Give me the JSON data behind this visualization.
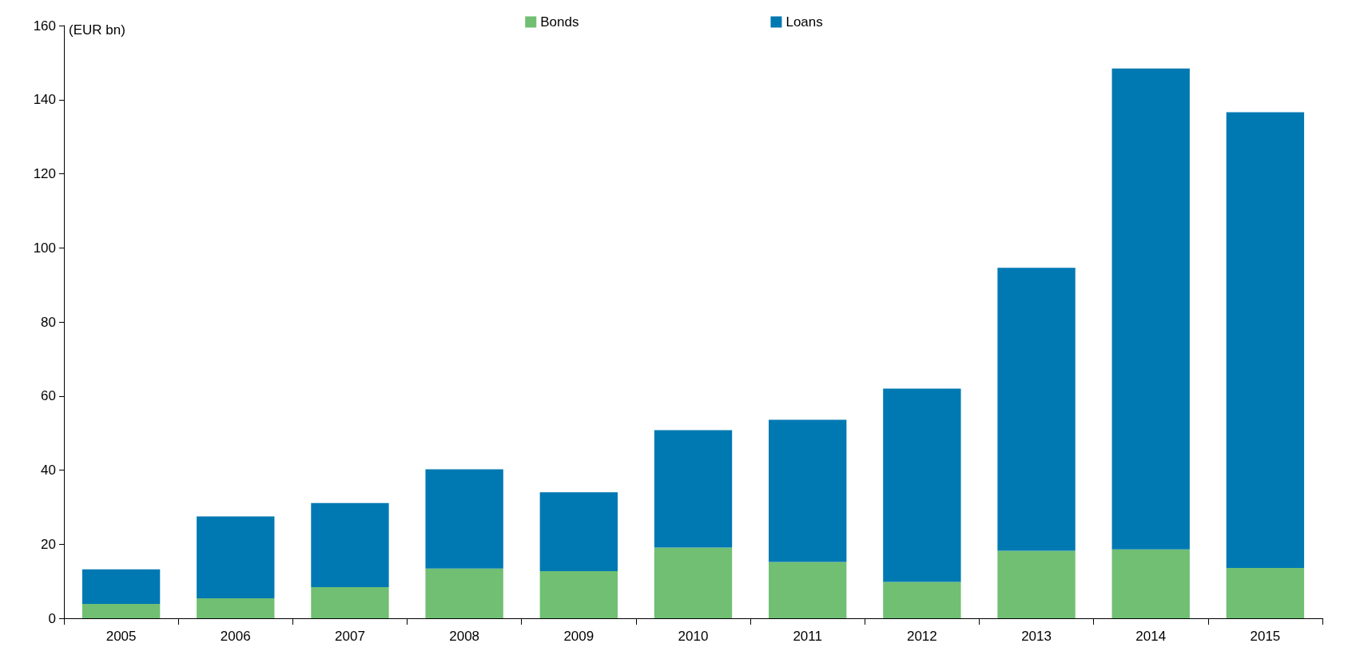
{
  "chart_data": {
    "type": "bar",
    "stacked": true,
    "ylabel": "(EUR bn)",
    "categories": [
      "2005",
      "2006",
      "2007",
      "2008",
      "2009",
      "2010",
      "2011",
      "2012",
      "2013",
      "2014",
      "2015"
    ],
    "series": [
      {
        "name": "Bonds",
        "color": "#70bf73",
        "values": [
          3.9,
          5.4,
          8.4,
          13.4,
          12.7,
          19.1,
          15.2,
          9.8,
          18.2,
          18.6,
          13.6
        ]
      },
      {
        "name": "Loans",
        "color": "#0079b2",
        "values": [
          9.3,
          22.1,
          22.7,
          26.8,
          21.3,
          31.7,
          38.4,
          52.2,
          76.4,
          129.8,
          123.0
        ]
      }
    ],
    "ylim": [
      0,
      160
    ],
    "yticks": [
      0,
      20,
      40,
      60,
      80,
      100,
      120,
      140,
      160
    ],
    "grid": false,
    "legend": "top"
  }
}
